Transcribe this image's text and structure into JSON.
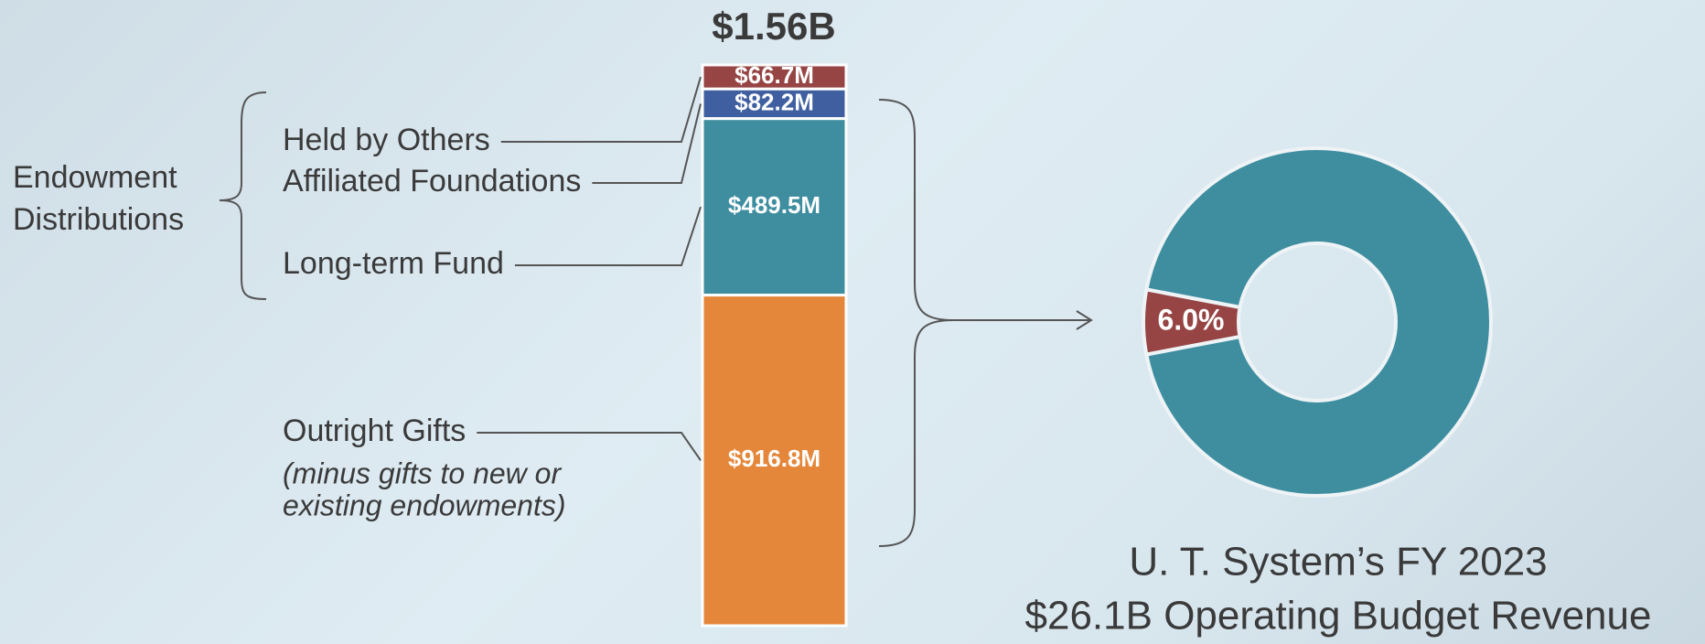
{
  "chart_data": [
    {
      "type": "bar",
      "stacked": true,
      "title": "$1.56B",
      "annotation": [
        "Endowment",
        "Distributions"
      ],
      "categories": [
        "Held by Others",
        "Affiliated Foundations",
        "Long-term Fund",
        "Outright Gifts"
      ],
      "note": [
        "(minus gifts to new or",
        "existing endowments)"
      ],
      "values": [
        66.7,
        82.2,
        489.5,
        916.8
      ],
      "value_labels": [
        "$66.7M",
        "$82.2M",
        "$489.5M",
        "$916.8M"
      ],
      "colors": [
        "#964444",
        "#3f5fa0",
        "#3e8ea0",
        "#e5873a"
      ]
    },
    {
      "type": "donut",
      "title": "U. T. System’s FY 2023",
      "subtitle": "$26.1B Operating Budget Revenue",
      "slices": [
        {
          "value": 6.0,
          "label": "6.0%",
          "color": "#964444"
        },
        {
          "value": 94,
          "color": "#3e8ea0"
        }
      ]
    }
  ]
}
